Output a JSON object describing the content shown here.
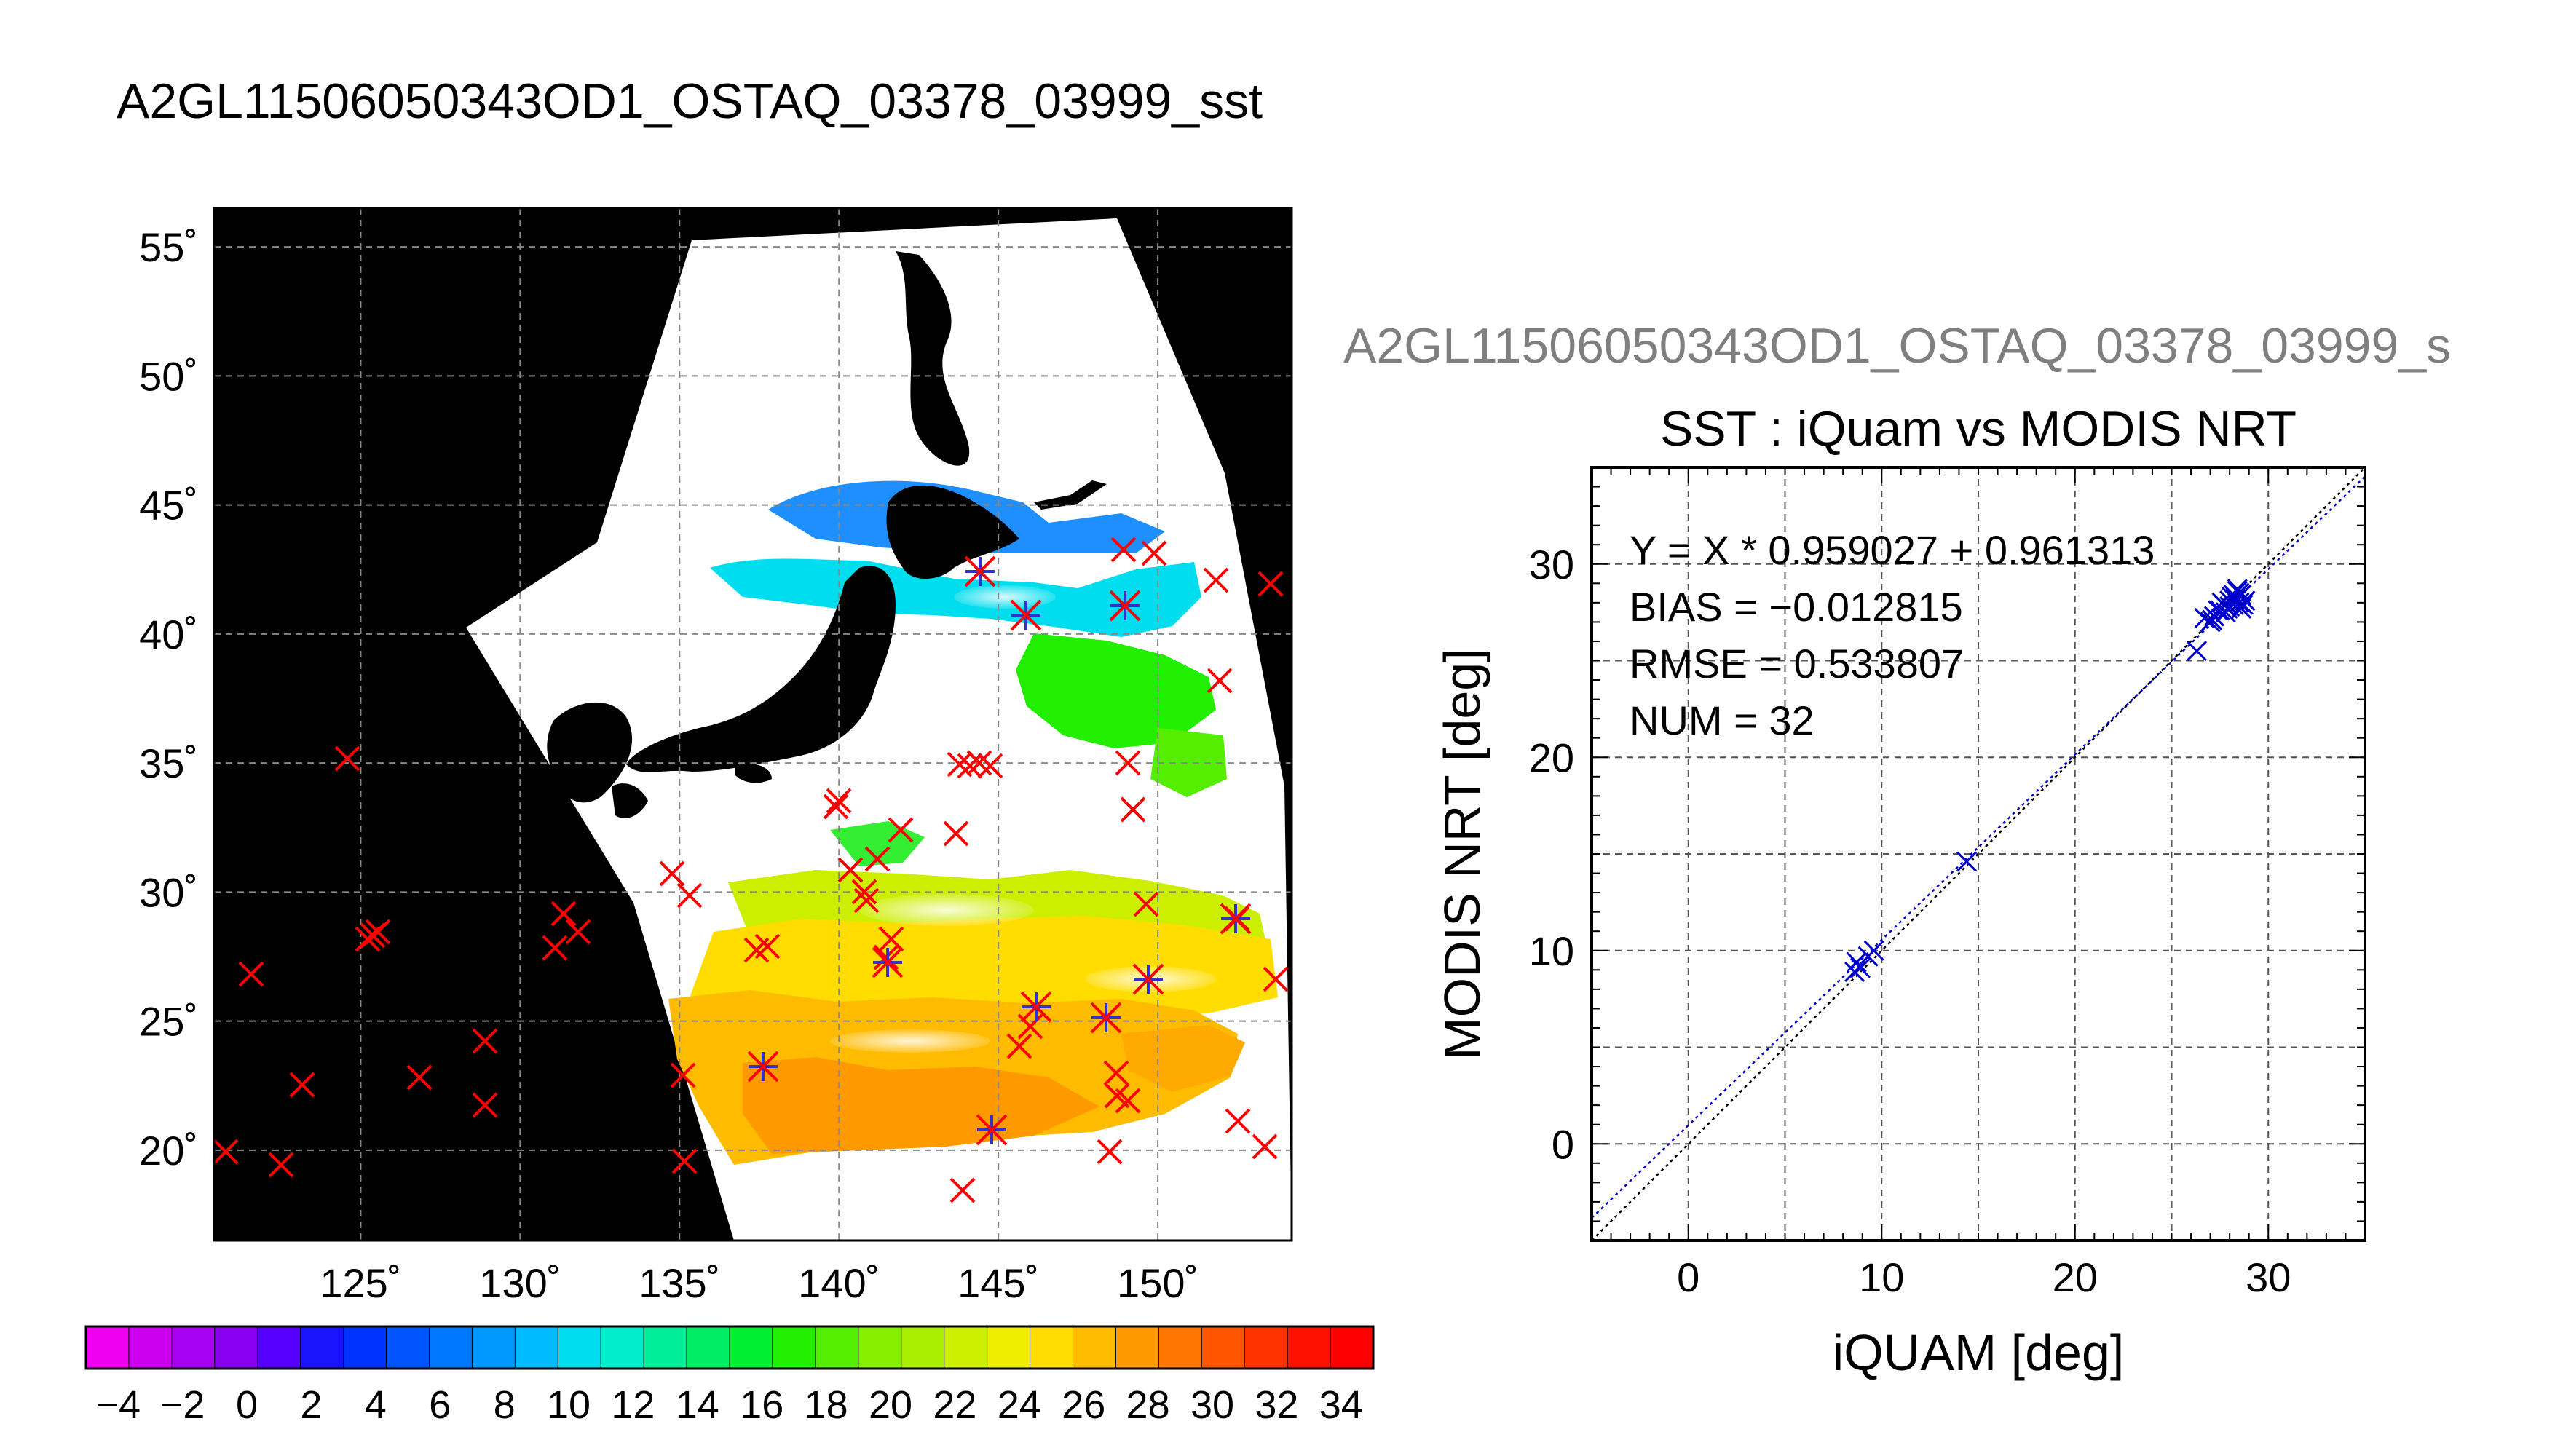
{
  "map": {
    "title": "A2GL11506050343OD1_OSTAQ_03378_03999_sst",
    "lat_ticks": [
      55,
      50,
      45,
      40,
      35,
      30,
      25,
      20
    ],
    "lon_ticks": [
      125,
      130,
      135,
      140,
      145,
      150
    ],
    "lat_tick_labels": [
      "55˚",
      "50˚",
      "45˚",
      "40˚",
      "35˚",
      "30˚",
      "25˚",
      "20˚"
    ],
    "lon_tick_labels": [
      "125˚",
      "130˚",
      "135˚",
      "140˚",
      "145˚",
      "150˚"
    ],
    "extent": {
      "lon": [
        120.4,
        154.2
      ],
      "lat": [
        16.5,
        56.5
      ]
    },
    "land_color": "#000000",
    "cloud_color": "#ffffff",
    "marker_color": "#ff0000",
    "matched_marker_color": "#3333cc"
  },
  "colorbar": {
    "labels": [
      "−4",
      "−2",
      "0",
      "2",
      "4",
      "6",
      "8",
      "10",
      "12",
      "14",
      "16",
      "18",
      "20",
      "22",
      "24",
      "26",
      "28",
      "30",
      "32",
      "34"
    ],
    "range": [
      -5,
      35
    ],
    "colors": [
      "#ee00ee",
      "#cc00ee",
      "#a800f0",
      "#8800f0",
      "#5500ff",
      "#1a14ff",
      "#0033ff",
      "#0055ff",
      "#0077ff",
      "#0099ff",
      "#00bbff",
      "#00ddee",
      "#00eecc",
      "#00ee99",
      "#00ee66",
      "#00ee33",
      "#22ee00",
      "#55ee00",
      "#88ee00",
      "#aaee00",
      "#ccee00",
      "#eeee00",
      "#ffdd00",
      "#ffbb00",
      "#ff9900",
      "#ff7700",
      "#ff5500",
      "#ff3300",
      "#ff1100",
      "#ff0000"
    ]
  },
  "scatter": {
    "title": "A2GL11506050343OD1_OSTAQ_03378_03999_s",
    "subtitle": "SST : iQuam vs MODIS NRT",
    "stats": [
      "Y = X * 0.959027 + 0.961313",
      "BIAS = −0.012815",
      "RMSE = 0.533807",
      "NUM = 32"
    ]
  },
  "chart_data": [
    {
      "type": "scatter",
      "title": "SST : iQuam vs MODIS NRT",
      "xlabel": "iQUAM [deg]",
      "ylabel": "MODIS NRT [deg]",
      "xlim": [
        -5,
        35
      ],
      "ylim": [
        -5,
        35
      ],
      "xticks": [
        0,
        10,
        20,
        30
      ],
      "yticks": [
        0,
        10,
        20,
        30
      ],
      "grid": true,
      "marker_color": "#0000cc",
      "lines": [
        {
          "kind": "identity",
          "style": "dotted",
          "color": "#000000"
        },
        {
          "kind": "fit",
          "slope": 0.959027,
          "intercept": 0.961313,
          "style": "dotted",
          "color": "#0000cc"
        }
      ],
      "series": [
        {
          "x": [
            8.6,
            8.7,
            8.9,
            9.3,
            9.6,
            14.4,
            26.3,
            26.7,
            27.0,
            27.2,
            27.5,
            27.7,
            27.9,
            28.0,
            28.1,
            28.2,
            28.3,
            28.4,
            28.5,
            28.6,
            28.8,
            27.6,
            27.8,
            28.0,
            28.2,
            28.4,
            28.6,
            27.1,
            27.4,
            28.3,
            28.5,
            28.7
          ],
          "y": [
            8.9,
            9.4,
            9.1,
            9.7,
            10.0,
            14.6,
            25.5,
            27.2,
            27.0,
            27.3,
            27.6,
            27.9,
            27.7,
            28.1,
            28.3,
            27.9,
            28.2,
            28.6,
            28.0,
            28.4,
            28.1,
            28.0,
            27.5,
            27.8,
            28.4,
            28.7,
            27.7,
            27.1,
            27.6,
            28.3,
            28.5,
            27.9
          ]
        }
      ]
    },
    {
      "type": "colorbar",
      "vmin": -5,
      "vmax": 35,
      "tick_labels": [
        "−4",
        "−2",
        "0",
        "2",
        "4",
        "6",
        "8",
        "10",
        "12",
        "14",
        "16",
        "18",
        "20",
        "22",
        "24",
        "26",
        "28",
        "30",
        "32",
        "34"
      ]
    }
  ]
}
